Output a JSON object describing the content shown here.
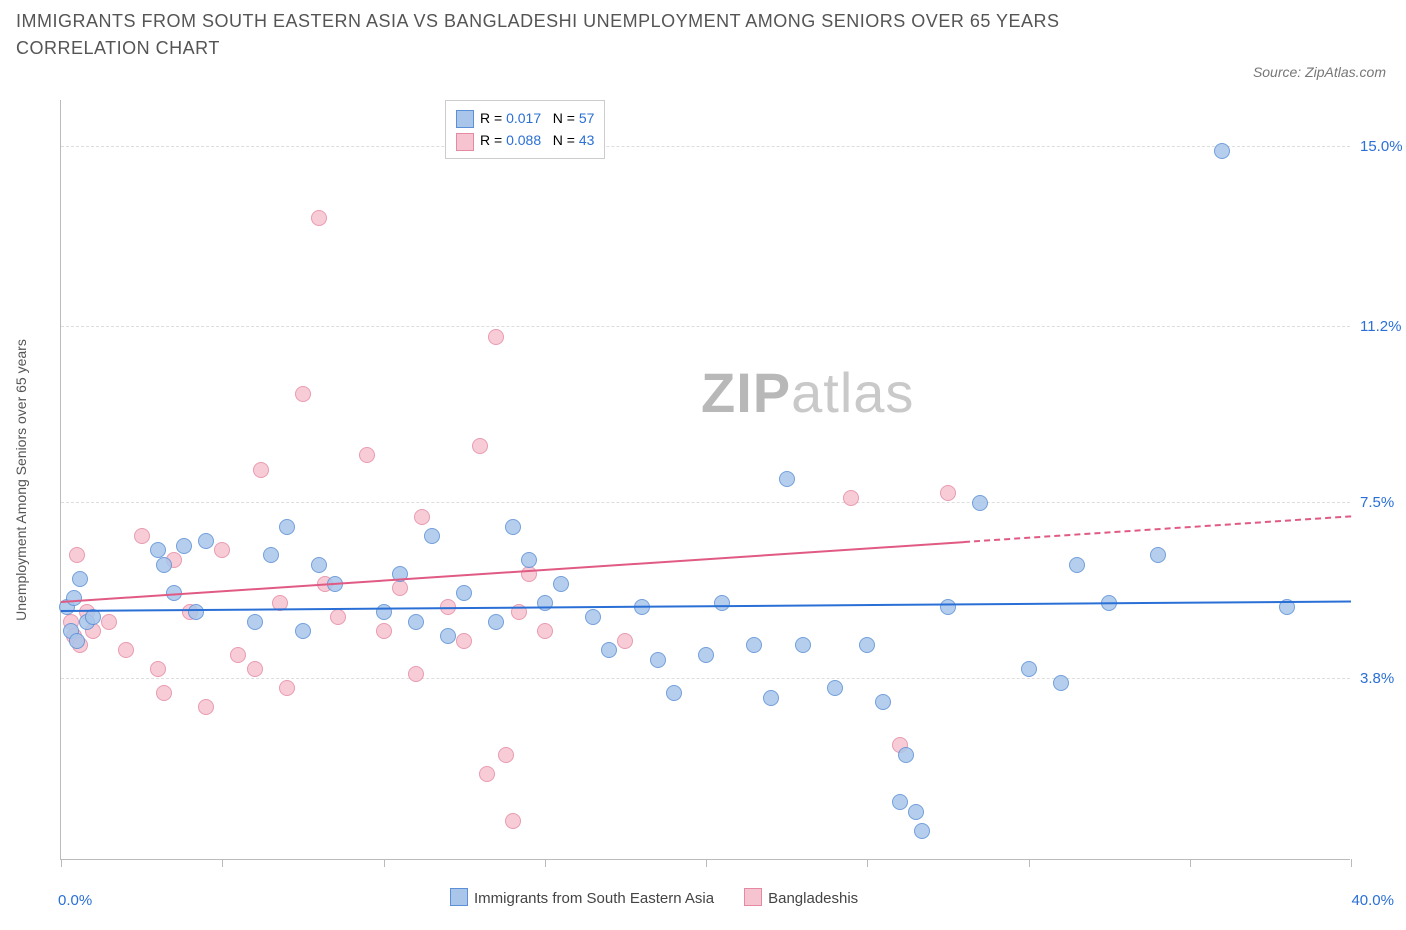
{
  "chart": {
    "type": "scatter",
    "title": "IMMIGRANTS FROM SOUTH EASTERN ASIA VS BANGLADESHI UNEMPLOYMENT AMONG SENIORS OVER 65 YEARS CORRELATION CHART",
    "source_label": "Source: ZipAtlas.com",
    "ylabel": "Unemployment Among Seniors over 65 years",
    "background_color": "#ffffff",
    "grid_color": "#dddddd",
    "axis_color": "#bbbbbb",
    "title_color": "#555555",
    "title_fontsize": 18,
    "label_fontsize": 14,
    "tick_fontsize": 15,
    "tick_label_color": "#2a6fd6",
    "watermark_text_1": "ZIP",
    "watermark_text_2": "atlas",
    "watermark_color": "#c9c9c9",
    "xlim": [
      0,
      40
    ],
    "ylim": [
      0,
      16
    ],
    "xtick_positions": [
      0,
      5,
      10,
      15,
      20,
      25,
      30,
      35,
      40
    ],
    "x_start_label": "0.0%",
    "x_end_label": "40.0%",
    "ytick_labels": [
      {
        "value": 3.8,
        "text": "3.8%"
      },
      {
        "value": 7.5,
        "text": "7.5%"
      },
      {
        "value": 11.2,
        "text": "11.2%"
      },
      {
        "value": 15.0,
        "text": "15.0%"
      }
    ],
    "marker_radius": 8,
    "marker_border_width": 1.5,
    "marker_fill_opacity": 0.25,
    "series": [
      {
        "name": "Immigrants from South Eastern Asia",
        "color_border": "#5b8fd6",
        "color_fill": "#a9c6ea",
        "R_label": "R =",
        "R": "0.017",
        "N_label": "N =",
        "N": "57",
        "trend": {
          "x1": 0,
          "y1": 5.2,
          "x2": 40,
          "y2": 5.4,
          "color": "#2a6fd6",
          "width": 2,
          "dash_from_x": null
        },
        "points": [
          [
            0.2,
            5.3
          ],
          [
            0.3,
            4.8
          ],
          [
            0.4,
            5.5
          ],
          [
            0.5,
            4.6
          ],
          [
            0.6,
            5.9
          ],
          [
            0.8,
            5.0
          ],
          [
            1.0,
            5.1
          ],
          [
            3.0,
            6.5
          ],
          [
            3.2,
            6.2
          ],
          [
            3.5,
            5.6
          ],
          [
            3.8,
            6.6
          ],
          [
            4.2,
            5.2
          ],
          [
            4.5,
            6.7
          ],
          [
            6.0,
            5.0
          ],
          [
            6.5,
            6.4
          ],
          [
            7.0,
            7.0
          ],
          [
            7.5,
            4.8
          ],
          [
            8.0,
            6.2
          ],
          [
            8.5,
            5.8
          ],
          [
            10.0,
            5.2
          ],
          [
            10.5,
            6.0
          ],
          [
            11.0,
            5.0
          ],
          [
            11.5,
            6.8
          ],
          [
            12.0,
            4.7
          ],
          [
            12.5,
            5.6
          ],
          [
            13.5,
            5.0
          ],
          [
            14.0,
            7.0
          ],
          [
            14.5,
            6.3
          ],
          [
            15.0,
            5.4
          ],
          [
            15.5,
            5.8
          ],
          [
            16.5,
            5.1
          ],
          [
            17.0,
            4.4
          ],
          [
            18.0,
            5.3
          ],
          [
            18.5,
            4.2
          ],
          [
            19.0,
            3.5
          ],
          [
            20.0,
            4.3
          ],
          [
            20.5,
            5.4
          ],
          [
            21.5,
            4.5
          ],
          [
            22.0,
            3.4
          ],
          [
            22.5,
            8.0
          ],
          [
            23.0,
            4.5
          ],
          [
            24.0,
            3.6
          ],
          [
            25.0,
            4.5
          ],
          [
            25.5,
            3.3
          ],
          [
            26.0,
            1.2
          ],
          [
            26.2,
            2.2
          ],
          [
            26.5,
            1.0
          ],
          [
            26.7,
            0.6
          ],
          [
            27.5,
            5.3
          ],
          [
            28.5,
            7.5
          ],
          [
            30.0,
            4.0
          ],
          [
            31.0,
            3.7
          ],
          [
            31.5,
            6.2
          ],
          [
            32.5,
            5.4
          ],
          [
            34.0,
            6.4
          ],
          [
            36.0,
            14.9
          ],
          [
            38.0,
            5.3
          ]
        ]
      },
      {
        "name": "Bangladeshis",
        "color_border": "#e68aa3",
        "color_fill": "#f6c4d1",
        "R_label": "R =",
        "R": "0.088",
        "N_label": "N =",
        "N": "43",
        "trend": {
          "x1": 0,
          "y1": 5.4,
          "x2": 40,
          "y2": 7.2,
          "color": "#e05a84",
          "width": 2,
          "dash_from_x": 28
        },
        "points": [
          [
            0.3,
            5.0
          ],
          [
            0.4,
            4.7
          ],
          [
            0.5,
            6.4
          ],
          [
            0.6,
            4.5
          ],
          [
            0.8,
            5.2
          ],
          [
            1.0,
            4.8
          ],
          [
            1.5,
            5.0
          ],
          [
            2.0,
            4.4
          ],
          [
            2.5,
            6.8
          ],
          [
            3.0,
            4.0
          ],
          [
            3.2,
            3.5
          ],
          [
            3.5,
            6.3
          ],
          [
            4.0,
            5.2
          ],
          [
            4.5,
            3.2
          ],
          [
            5.0,
            6.5
          ],
          [
            5.5,
            4.3
          ],
          [
            6.0,
            4.0
          ],
          [
            6.2,
            8.2
          ],
          [
            6.8,
            5.4
          ],
          [
            7.0,
            3.6
          ],
          [
            7.5,
            9.8
          ],
          [
            8.0,
            13.5
          ],
          [
            8.2,
            5.8
          ],
          [
            8.6,
            5.1
          ],
          [
            9.5,
            8.5
          ],
          [
            10.0,
            4.8
          ],
          [
            10.5,
            5.7
          ],
          [
            11.0,
            3.9
          ],
          [
            11.2,
            7.2
          ],
          [
            12.0,
            5.3
          ],
          [
            12.5,
            4.6
          ],
          [
            13.0,
            8.7
          ],
          [
            13.2,
            1.8
          ],
          [
            13.5,
            11.0
          ],
          [
            13.8,
            2.2
          ],
          [
            14.0,
            0.8
          ],
          [
            14.2,
            5.2
          ],
          [
            14.5,
            6.0
          ],
          [
            15.0,
            4.8
          ],
          [
            17.5,
            4.6
          ],
          [
            24.5,
            7.6
          ],
          [
            26.0,
            2.4
          ],
          [
            27.5,
            7.7
          ]
        ]
      }
    ],
    "bottom_legend": [
      {
        "swatch_fill": "#a9c6ea",
        "swatch_border": "#5b8fd6",
        "label": "Immigrants from South Eastern Asia"
      },
      {
        "swatch_fill": "#f6c4d1",
        "swatch_border": "#e68aa3",
        "label": "Bangladeshis"
      }
    ]
  }
}
